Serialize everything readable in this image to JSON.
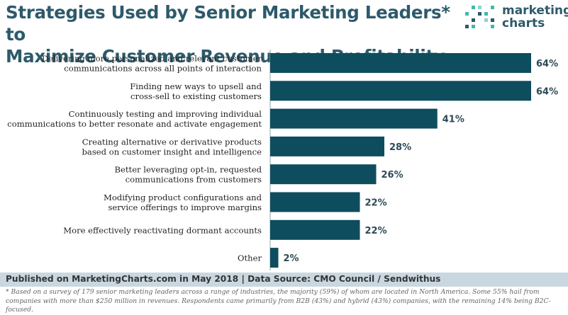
{
  "header": {
    "title_line1": "Strategies Used by Senior Marketing Leaders* to",
    "title_line2": "Maximize Customer Revenue and Profitability"
  },
  "logo": {
    "line1": "marketing",
    "line2": "charts",
    "dot_colors": [
      "#2d5a6b",
      "#3fb8af",
      "#8fd3cf"
    ]
  },
  "colors": {
    "bar": "#0e4d5e",
    "title": "#2d5a6b",
    "footer_bg": "#c9d7e0"
  },
  "chart_data": {
    "type": "bar",
    "orientation": "horizontal",
    "categories": [
      [
        "Delivering more personalized and relevant customer",
        "communications across all points of interaction"
      ],
      [
        "Finding new ways to upsell and",
        "cross-sell to existing customers"
      ],
      [
        "Continuously testing and improving individual",
        "communications to better resonate and activate engagement"
      ],
      [
        "Creating alternative or derivative products",
        "based on customer insight and intelligence"
      ],
      [
        "Better leveraging opt-in, requested",
        "communications from customers"
      ],
      [
        "Modifying product configurations and",
        "service offerings to improve margins"
      ],
      [
        "More effectively reactivating dormant accounts"
      ],
      [
        "Other"
      ]
    ],
    "values": [
      64,
      64,
      41,
      28,
      26,
      22,
      22,
      2
    ],
    "value_labels": [
      "64%",
      "64%",
      "41%",
      "28%",
      "26%",
      "22%",
      "22%",
      "2%"
    ],
    "xlim": [
      0,
      64
    ],
    "grid": false,
    "legend": "none"
  },
  "footer": {
    "source": "Published on MarketingCharts.com in May 2018 | Data Source: CMO Council / Sendwithus",
    "note": "* Based on a survey of 179 senior marketing leaders across a range of industries, the majority (59%) of whom are located in North America. Some 55% hail from companies with more than $250 million in revenues. Respondents came primarily from B2B (43%) and hybrid (43%) companies, with the remaining 14% being B2C-focused."
  }
}
